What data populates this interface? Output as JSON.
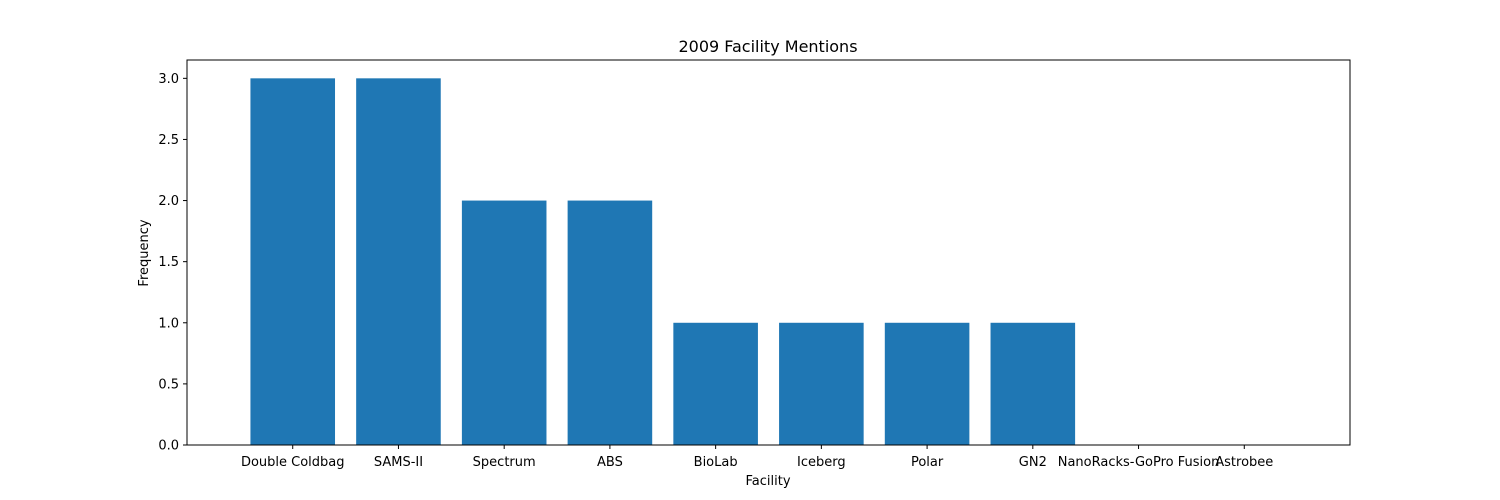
{
  "chart_data": {
    "type": "bar",
    "title": "2009 Facility Mentions",
    "xlabel": "Facility",
    "ylabel": "Frequency",
    "categories": [
      "Double Coldbag",
      "SAMS-II",
      "Spectrum",
      "ABS",
      "BioLab",
      "Iceberg",
      "Polar",
      "GN2",
      "NanoRacks-GoPro Fusion",
      "Astrobee"
    ],
    "values": [
      3,
      3,
      2,
      2,
      1,
      1,
      1,
      1,
      0,
      0
    ],
    "ylim": [
      0,
      3.15
    ],
    "yticks": [
      "0.0",
      "0.5",
      "1.0",
      "1.5",
      "2.0",
      "2.5",
      "3.0"
    ],
    "bar_color": "#1f77b4",
    "grid": false,
    "legend": "none"
  }
}
